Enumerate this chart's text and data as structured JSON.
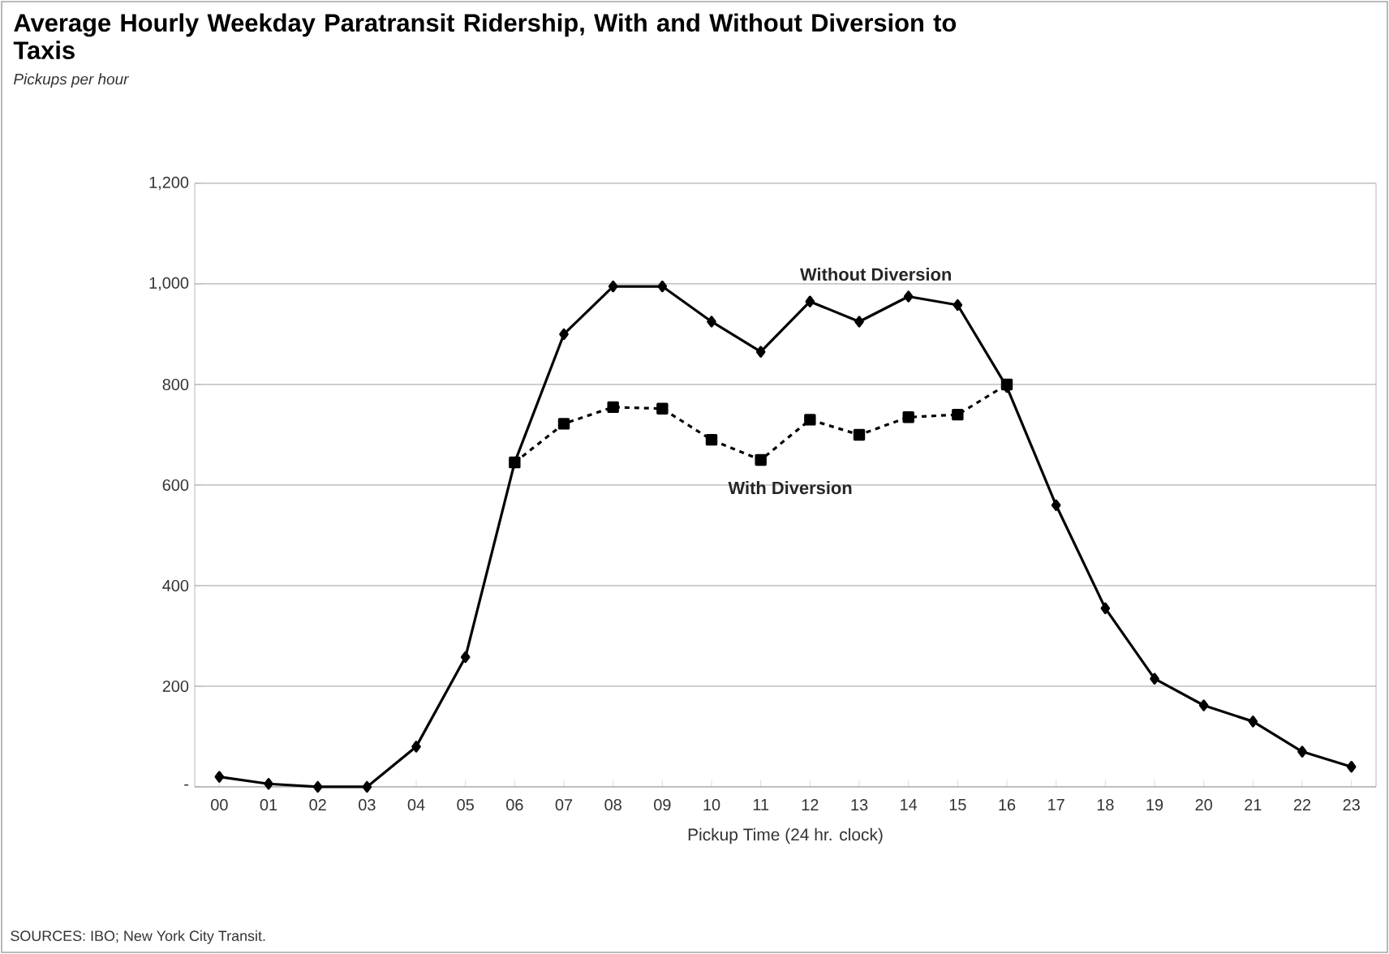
{
  "chart_data": {
    "type": "line",
    "title": "Average Hourly Weekday Paratransit Ridership, With and Without Diversion to Taxis",
    "subtitle": "Pickups per hour",
    "xlabel": "Pickup Time (24 hr. clock)",
    "categories": [
      "00",
      "01",
      "02",
      "03",
      "04",
      "05",
      "06",
      "07",
      "08",
      "09",
      "10",
      "11",
      "12",
      "13",
      "14",
      "15",
      "16",
      "17",
      "18",
      "19",
      "20",
      "21",
      "22",
      "23"
    ],
    "series": [
      {
        "name": "Without Diversion",
        "color": "#000000",
        "marker": "diamond",
        "line_style": "solid",
        "values": [
          20,
          6,
          0,
          0,
          80,
          258,
          645,
          900,
          995,
          995,
          925,
          865,
          965,
          925,
          975,
          958,
          795,
          560,
          355,
          215,
          162,
          130,
          70,
          40
        ]
      },
      {
        "name": "With Diversion",
        "color": "#000000",
        "marker": "square",
        "line_style": "dashed",
        "values": [
          null,
          null,
          null,
          null,
          null,
          null,
          645,
          722,
          755,
          752,
          690,
          650,
          730,
          700,
          735,
          740,
          800,
          null,
          null,
          null,
          null,
          null,
          null,
          null
        ]
      }
    ],
    "ylim": [
      0,
      1200
    ],
    "yticks": [
      {
        "value": 0,
        "label": "-"
      },
      {
        "value": 200,
        "label": "200"
      },
      {
        "value": 400,
        "label": "400"
      },
      {
        "value": 600,
        "label": "600"
      },
      {
        "value": 800,
        "label": "800"
      },
      {
        "value": 1000,
        "label": "1,000"
      },
      {
        "value": 1200,
        "label": "1,200"
      }
    ],
    "grid": "y",
    "annotations": [
      "SOURCES: IBO; New York City Transit."
    ]
  }
}
